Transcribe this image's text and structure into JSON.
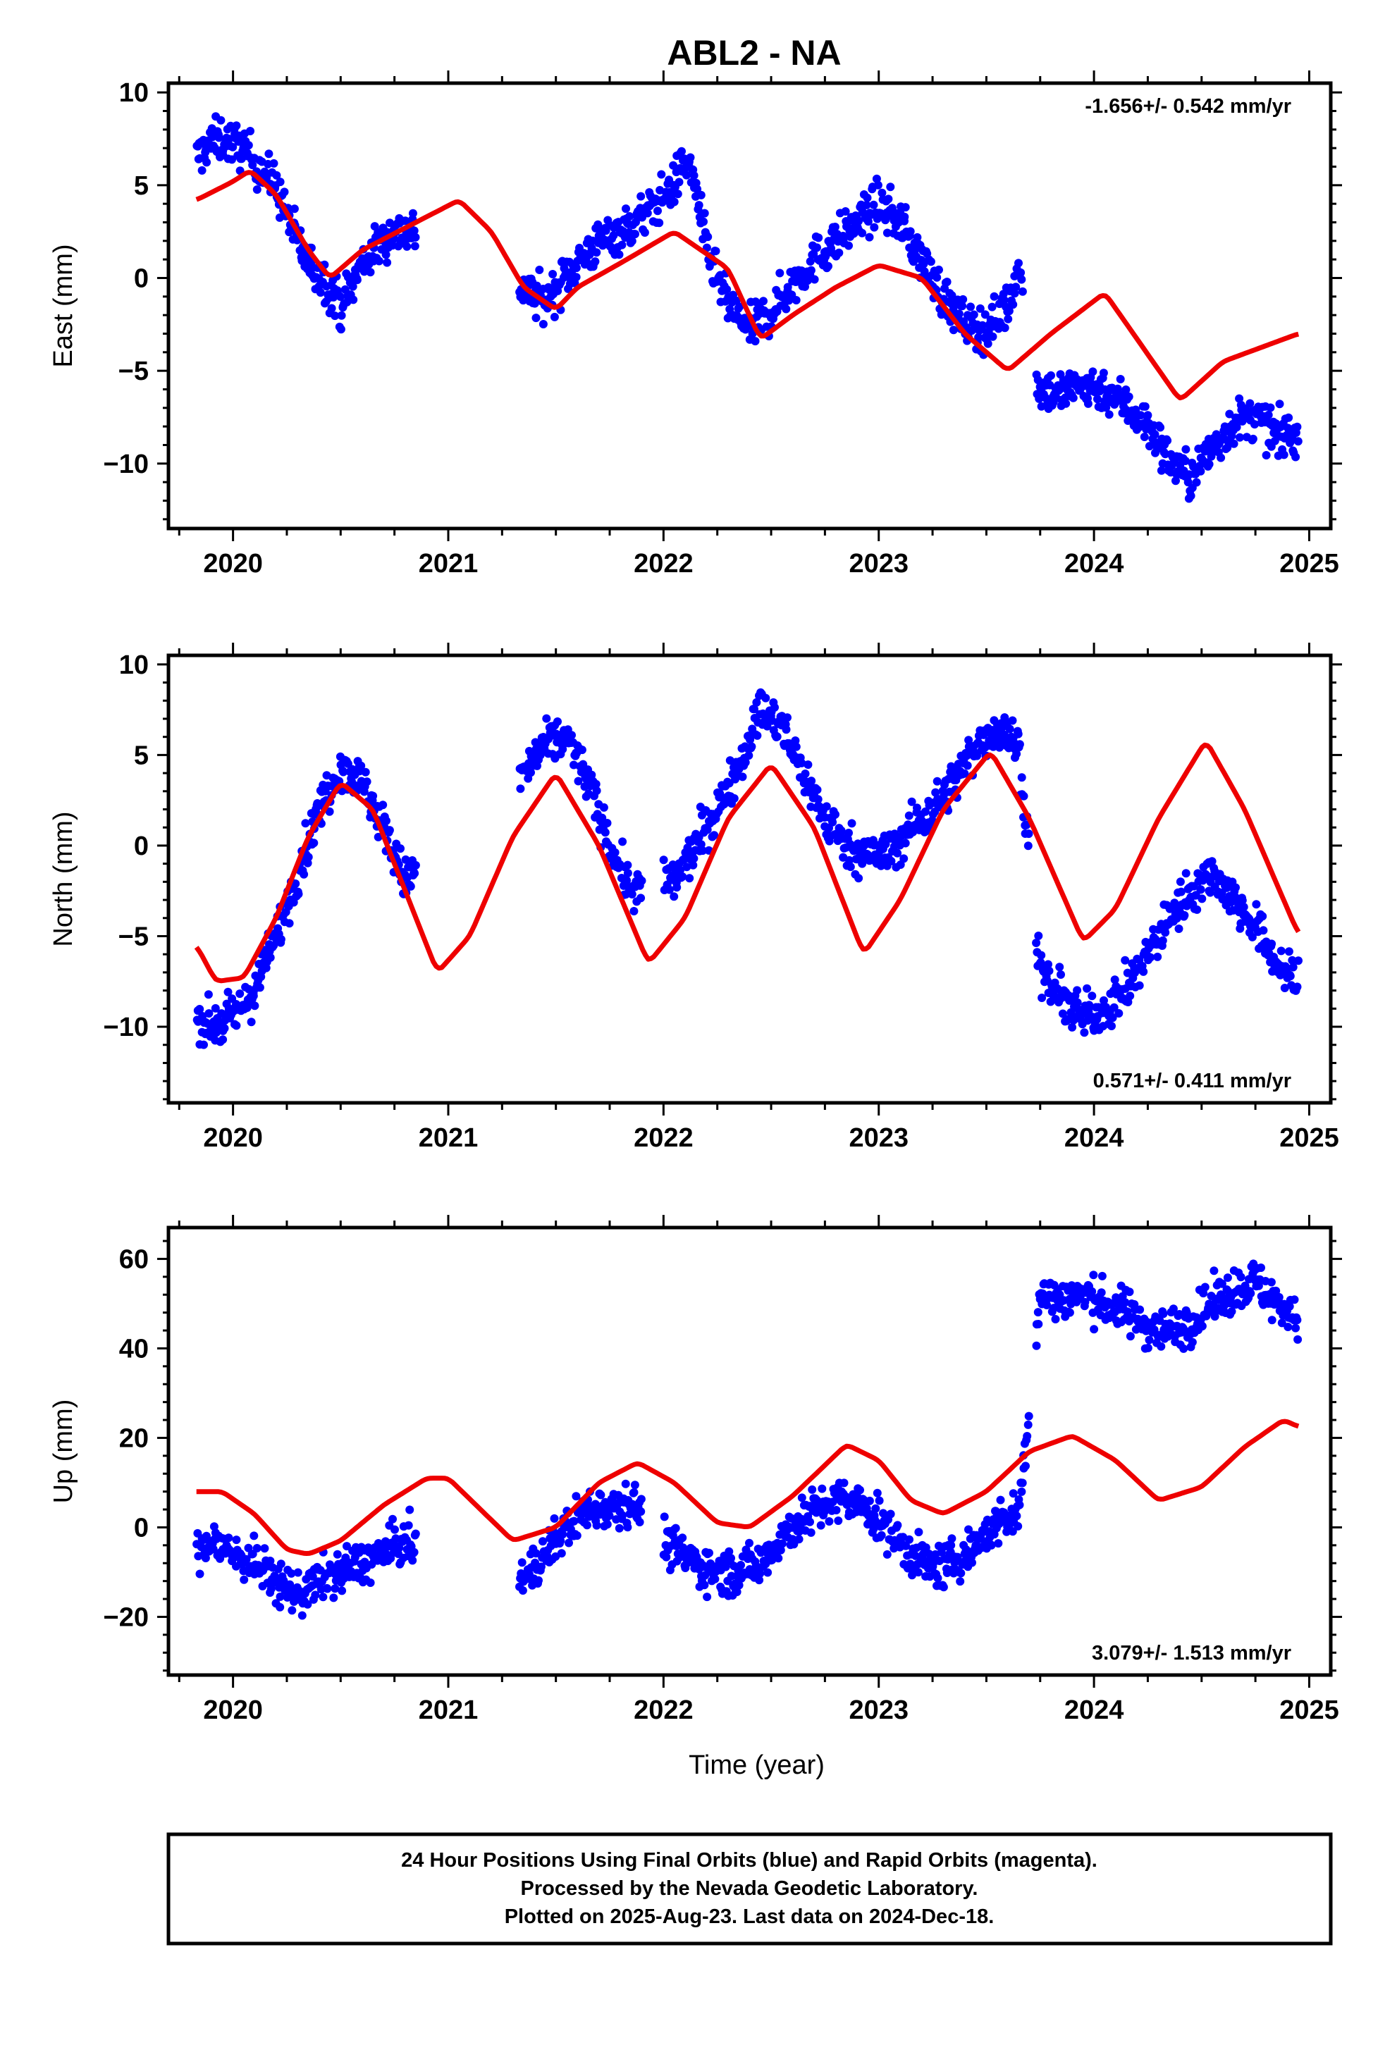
{
  "title": "ABL2 - NA",
  "colors": {
    "data_points": "#0000ff",
    "model_curve": "#ee0000",
    "axes": "#000000",
    "background": "#ffffff"
  },
  "chart_data": [
    {
      "type": "scatter",
      "id": "east",
      "ylabel": "East (mm)",
      "xlabel": "",
      "rate_label": "-1.656+/- 0.542 mm/yr",
      "rate_position": "top-right",
      "xlim": [
        2019.7,
        2025.1
      ],
      "ylim": [
        -13.5,
        10.5
      ],
      "xticks": [
        2020,
        2021,
        2022,
        2023,
        2024,
        2025
      ],
      "yticks": [
        -10,
        -5,
        0,
        5,
        10
      ],
      "ytick_labels": [
        "−10",
        "−5",
        "0",
        "5",
        "10"
      ],
      "grid": false,
      "segments": [
        [
          2019.83,
          2020.85
        ],
        [
          2021.33,
          2022.05
        ],
        [
          2022.05,
          2022.2
        ],
        [
          2022.2,
          2023.67
        ],
        [
          2023.73,
          2024.95
        ]
      ],
      "series": [
        {
          "kind": "points",
          "x": [
            2019.84,
            2019.88,
            2019.95,
            2020.05,
            2020.12,
            2020.2,
            2020.28,
            2020.35,
            2020.42,
            2020.5,
            2020.55,
            2020.6,
            2020.68,
            2020.75,
            2020.82,
            2021.35,
            2021.45,
            2021.55,
            2021.65,
            2021.75,
            2021.85,
            2021.95,
            2022.05,
            2022.1,
            2022.15,
            2022.2,
            2022.3,
            2022.4,
            2022.5,
            2022.6,
            2022.7,
            2022.8,
            2022.9,
            2023.0,
            2023.1,
            2023.2,
            2023.3,
            2023.4,
            2023.5,
            2023.6,
            2023.65,
            2023.75,
            2023.85,
            2023.95,
            2024.05,
            2024.15,
            2024.25,
            2024.35,
            2024.45,
            2024.55,
            2024.65,
            2024.75,
            2024.85,
            2024.93
          ],
          "y": [
            6.5,
            7.2,
            7.5,
            7.0,
            6.0,
            5.0,
            2.5,
            0.8,
            0.0,
            -1.5,
            -0.5,
            0.8,
            1.8,
            2.5,
            2.6,
            -0.6,
            -1.3,
            0.2,
            1.4,
            2.3,
            2.8,
            3.8,
            5.0,
            6.5,
            5.0,
            1.5,
            -1.5,
            -2.8,
            -1.8,
            -0.3,
            1.0,
            2.0,
            3.0,
            4.0,
            3.0,
            1.0,
            -1.0,
            -2.5,
            -2.8,
            -1.5,
            0.5,
            -6.0,
            -6.2,
            -5.8,
            -6.0,
            -6.8,
            -8.0,
            -9.8,
            -10.8,
            -9.2,
            -7.8,
            -7.5,
            -8.5,
            -8.5
          ]
        },
        {
          "kind": "model",
          "x": [
            2019.83,
            2020.0,
            2020.08,
            2020.2,
            2020.35,
            2020.45,
            2020.6,
            2020.8,
            2021.05,
            2021.2,
            2021.35,
            2021.5,
            2021.6,
            2021.8,
            2022.05,
            2022.3,
            2022.45,
            2022.6,
            2022.8,
            2023.0,
            2023.2,
            2023.4,
            2023.6,
            2023.8,
            2024.05,
            2024.4,
            2024.6,
            2024.95
          ],
          "y": [
            4.2,
            5.2,
            5.8,
            4.5,
            1.5,
            0.0,
            1.5,
            2.7,
            4.2,
            2.5,
            -0.5,
            -1.7,
            -0.5,
            0.8,
            2.5,
            0.5,
            -3.3,
            -2.0,
            -0.5,
            0.7,
            0.0,
            -3.0,
            -5.0,
            -3.0,
            -0.8,
            -6.6,
            -4.5,
            -3.0
          ]
        }
      ]
    },
    {
      "type": "scatter",
      "id": "north",
      "ylabel": "North (mm)",
      "xlabel": "",
      "rate_label": "0.571+/- 0.411 mm/yr",
      "rate_position": "bottom-right",
      "xlim": [
        2019.7,
        2025.1
      ],
      "ylim": [
        -14.2,
        10.5
      ],
      "xticks": [
        2020,
        2021,
        2022,
        2023,
        2024,
        2025
      ],
      "yticks": [
        -10,
        -5,
        0,
        5,
        10
      ],
      "ytick_labels": [
        "−10",
        "−5",
        "0",
        "5",
        "10"
      ],
      "grid": false,
      "segments": [
        [
          2019.83,
          2020.85
        ],
        [
          2021.33,
          2021.9
        ],
        [
          2022.0,
          2023.7
        ],
        [
          2023.73,
          2024.95
        ]
      ],
      "series": [
        {
          "kind": "points",
          "x": [
            2019.84,
            2019.9,
            2020.0,
            2020.1,
            2020.2,
            2020.3,
            2020.4,
            2020.5,
            2020.6,
            2020.7,
            2020.8,
            2021.35,
            2021.45,
            2021.55,
            2021.65,
            2021.75,
            2021.85,
            2022.05,
            2022.15,
            2022.25,
            2022.35,
            2022.45,
            2022.55,
            2022.65,
            2022.75,
            2022.85,
            2022.95,
            2023.05,
            2023.15,
            2023.25,
            2023.35,
            2023.45,
            2023.55,
            2023.65,
            2023.75,
            2023.85,
            2023.95,
            2024.05,
            2024.15,
            2024.25,
            2024.35,
            2024.45,
            2024.55,
            2024.65,
            2024.75,
            2024.85,
            2024.93
          ],
          "y": [
            -9.5,
            -10.0,
            -9.5,
            -8.0,
            -5.0,
            -1.5,
            2.0,
            4.5,
            3.5,
            1.0,
            -2.0,
            4.0,
            5.5,
            6.0,
            3.5,
            0.0,
            -2.5,
            -2.0,
            0.0,
            2.0,
            4.5,
            7.5,
            6.5,
            4.0,
            1.5,
            0.0,
            -0.5,
            -0.5,
            1.0,
            2.0,
            3.5,
            5.5,
            6.5,
            5.5,
            -7.0,
            -8.5,
            -9.5,
            -9.0,
            -8.0,
            -6.0,
            -4.0,
            -2.5,
            -1.5,
            -3.0,
            -4.5,
            -6.5,
            -7.5
          ]
        },
        {
          "kind": "model",
          "x": [
            2019.83,
            2019.92,
            2020.05,
            2020.2,
            2020.35,
            2020.5,
            2020.65,
            2020.8,
            2020.95,
            2021.1,
            2021.3,
            2021.5,
            2021.7,
            2021.93,
            2022.1,
            2022.3,
            2022.5,
            2022.7,
            2022.93,
            2023.1,
            2023.3,
            2023.52,
            2023.7,
            2023.95,
            2024.1,
            2024.3,
            2024.52,
            2024.7,
            2024.95
          ],
          "y": [
            -5.5,
            -7.5,
            -7.3,
            -4.0,
            0.5,
            3.5,
            2.0,
            -2.5,
            -7.0,
            -5.0,
            0.5,
            4.0,
            0.0,
            -6.5,
            -4.0,
            1.5,
            4.5,
            1.0,
            -6.0,
            -3.0,
            2.0,
            5.2,
            1.5,
            -5.3,
            -3.5,
            1.5,
            5.8,
            2.0,
            -4.9
          ]
        }
      ]
    },
    {
      "type": "scatter",
      "id": "up",
      "ylabel": "Up (mm)",
      "xlabel": "Time (year)",
      "rate_label": "3.079+/- 1.513 mm/yr",
      "rate_position": "bottom-right",
      "xlim": [
        2019.7,
        2025.1
      ],
      "ylim": [
        -33,
        67
      ],
      "xticks": [
        2020,
        2021,
        2022,
        2023,
        2024,
        2025
      ],
      "yticks": [
        -20,
        0,
        20,
        40,
        60
      ],
      "ytick_labels": [
        "−20",
        "0",
        "20",
        "40",
        "60"
      ],
      "grid": false,
      "segments": [
        [
          2019.83,
          2020.85
        ],
        [
          2021.33,
          2021.9
        ],
        [
          2022.0,
          2023.7
        ],
        [
          2023.73,
          2024.95
        ]
      ],
      "series": [
        {
          "kind": "points",
          "x": [
            2019.84,
            2019.9,
            2020.0,
            2020.1,
            2020.2,
            2020.3,
            2020.4,
            2020.5,
            2020.6,
            2020.7,
            2020.8,
            2021.35,
            2021.45,
            2021.55,
            2021.65,
            2021.75,
            2021.85,
            2022.05,
            2022.15,
            2022.25,
            2022.35,
            2022.45,
            2022.55,
            2022.65,
            2022.75,
            2022.85,
            2022.95,
            2023.05,
            2023.15,
            2023.25,
            2023.35,
            2023.45,
            2023.55,
            2023.65,
            2023.75,
            2023.85,
            2023.95,
            2024.05,
            2024.15,
            2024.25,
            2024.35,
            2024.45,
            2024.55,
            2024.65,
            2024.75,
            2024.85,
            2024.93
          ],
          "y": [
            -5,
            -3,
            -6,
            -8,
            -12,
            -15,
            -12,
            -10,
            -8,
            -6,
            -3,
            -12,
            -6,
            0,
            4,
            5,
            6,
            -5,
            -8,
            -10,
            -10,
            -8,
            -2,
            2,
            5,
            6,
            4,
            -1,
            -6,
            -9,
            -8,
            -4,
            1,
            3,
            52,
            51,
            52,
            50,
            48,
            45,
            44,
            46,
            50,
            53,
            55,
            50,
            48
          ]
        },
        {
          "kind": "model",
          "x": [
            2019.83,
            2019.95,
            2020.1,
            2020.25,
            2020.35,
            2020.5,
            2020.7,
            2020.9,
            2021.0,
            2021.15,
            2021.3,
            2021.5,
            2021.7,
            2021.88,
            2022.05,
            2022.25,
            2022.4,
            2022.6,
            2022.85,
            2023.0,
            2023.15,
            2023.3,
            2023.5,
            2023.7,
            2023.9,
            2024.1,
            2024.3,
            2024.5,
            2024.7,
            2024.88,
            2024.95
          ],
          "y": [
            8,
            8,
            3,
            -5,
            -6,
            -3,
            5,
            11,
            11,
            4,
            -3,
            0,
            10,
            14.5,
            10,
            1,
            0,
            7,
            18.5,
            15,
            6,
            3,
            8,
            17,
            20.5,
            15,
            6,
            9,
            18,
            24,
            22.5
          ]
        }
      ]
    }
  ],
  "footer": {
    "lines": [
      "24 Hour Positions Using Final Orbits (blue) and Rapid Orbits (magenta).",
      "Processed by the Nevada Geodetic Laboratory.",
      "Plotted on 2025-Aug-23. Last data on 2024-Dec-18."
    ]
  }
}
